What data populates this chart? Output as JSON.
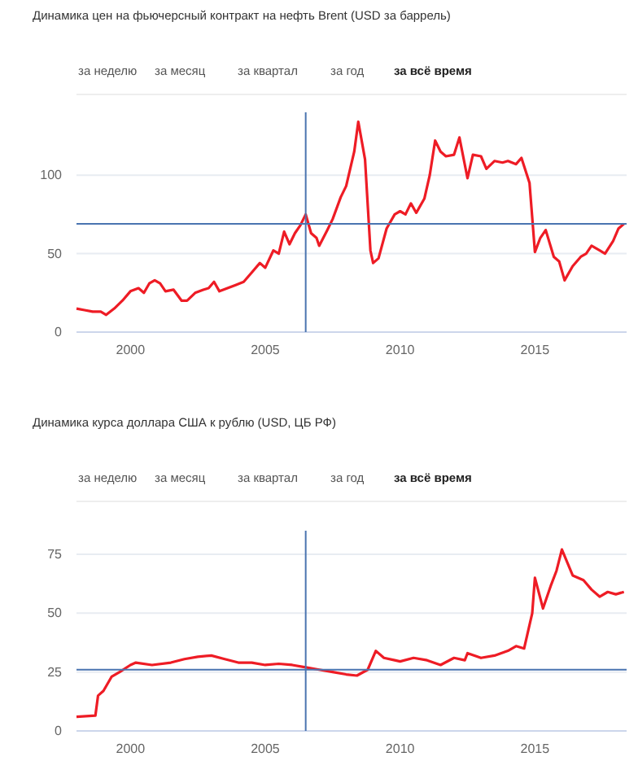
{
  "chart_data": [
    {
      "type": "line",
      "title": "Динамика цен на фьючерсный контракт на нефть Brent (USD за баррель)",
      "annotations": [
        "за неделю",
        "за месяц",
        "за квартал",
        "за год",
        "за всё время"
      ],
      "x": [
        1998.0,
        1998.3,
        1998.6,
        1998.9,
        1999.1,
        1999.4,
        1999.7,
        2000.0,
        2000.3,
        2000.5,
        2000.7,
        2000.9,
        2001.1,
        2001.3,
        2001.6,
        2001.9,
        2002.1,
        2002.4,
        2002.7,
        2002.9,
        2003.1,
        2003.3,
        2003.6,
        2003.9,
        2004.2,
        2004.5,
        2004.8,
        2005.0,
        2005.3,
        2005.5,
        2005.7,
        2005.9,
        2006.1,
        2006.3,
        2006.5,
        2006.7,
        2006.9,
        2007.0,
        2007.3,
        2007.5,
        2007.8,
        2008.0,
        2008.3,
        2008.45,
        2008.7,
        2008.9,
        2009.0,
        2009.2,
        2009.5,
        2009.8,
        2010.0,
        2010.2,
        2010.4,
        2010.6,
        2010.9,
        2011.1,
        2011.3,
        2011.5,
        2011.7,
        2012.0,
        2012.2,
        2012.5,
        2012.7,
        2013.0,
        2013.2,
        2013.5,
        2013.8,
        2014.0,
        2014.3,
        2014.5,
        2014.8,
        2015.0,
        2015.2,
        2015.4,
        2015.7,
        2015.9,
        2016.1,
        2016.4,
        2016.7,
        2016.9,
        2017.1,
        2017.4,
        2017.6,
        2017.9,
        2018.1,
        2018.3
      ],
      "series": [
        {
          "color": "#ee1c25",
          "values": [
            15,
            14,
            13,
            13,
            11,
            15,
            20,
            26,
            28,
            25,
            31,
            33,
            31,
            26,
            27,
            20,
            20,
            25,
            27,
            28,
            32,
            26,
            28,
            30,
            32,
            38,
            44,
            41,
            52,
            50,
            64,
            56,
            63,
            68,
            75,
            63,
            60,
            55,
            65,
            72,
            86,
            93,
            115,
            134,
            110,
            52,
            44,
            47,
            66,
            75,
            77,
            75,
            82,
            76,
            85,
            100,
            122,
            115,
            112,
            113,
            124,
            98,
            113,
            112,
            104,
            109,
            108,
            109,
            107,
            111,
            95,
            51,
            60,
            65,
            48,
            45,
            33,
            42,
            48,
            50,
            55,
            52,
            50,
            58,
            66,
            69
          ]
        }
      ],
      "xlim": [
        1998,
        2018.4
      ],
      "xticks": [
        2000,
        2005,
        2010,
        2015
      ],
      "ylim": [
        0,
        140
      ],
      "yticks": [
        0,
        50,
        100
      ],
      "grid": "y",
      "ref_lines": [
        {
          "axis": "x",
          "value": 2006.5,
          "color": "#4a74b0"
        },
        {
          "axis": "y",
          "value": 69,
          "color": "#4a74b0"
        }
      ]
    },
    {
      "type": "line",
      "title": "Динамика курса доллара США к рублю (USD, ЦБ РФ)",
      "annotations": [
        "за неделю",
        "за месяц",
        "за квартал",
        "за год",
        "за всё время"
      ],
      "x": [
        1998.0,
        1998.7,
        1998.8,
        1999.0,
        1999.3,
        1999.6,
        2000.0,
        2000.2,
        2000.8,
        2001.5,
        2002.0,
        2002.5,
        2003.0,
        2003.5,
        2004.0,
        2004.5,
        2005.0,
        2005.5,
        2006.0,
        2006.5,
        2007.0,
        2007.5,
        2008.0,
        2008.4,
        2008.8,
        2009.1,
        2009.4,
        2009.8,
        2010.0,
        2010.5,
        2011.0,
        2011.5,
        2012.0,
        2012.4,
        2012.5,
        2013.0,
        2013.5,
        2014.0,
        2014.3,
        2014.6,
        2014.9,
        2015.0,
        2015.3,
        2015.6,
        2015.8,
        2016.0,
        2016.4,
        2016.8,
        2017.1,
        2017.4,
        2017.7,
        2018.0,
        2018.3
      ],
      "series": [
        {
          "color": "#ee1c25",
          "values": [
            6,
            6.5,
            15,
            17,
            23,
            25,
            28,
            29,
            28,
            29,
            30.5,
            31.5,
            32,
            30.5,
            29,
            29,
            28,
            28.5,
            28,
            27,
            26,
            25,
            24,
            23.5,
            26,
            34,
            31,
            30,
            29.5,
            31,
            30,
            28,
            31,
            30,
            33,
            31,
            32,
            34,
            36,
            35,
            50,
            65,
            52,
            62,
            68,
            77,
            66,
            64,
            60,
            57,
            59,
            58,
            59
          ]
        }
      ],
      "xlim": [
        1998,
        2018.4
      ],
      "xticks": [
        2000,
        2005,
        2010,
        2015
      ],
      "ylim": [
        0,
        85
      ],
      "yticks": [
        0,
        25,
        50,
        75
      ],
      "grid": "y",
      "ref_lines": [
        {
          "axis": "x",
          "value": 2006.5,
          "color": "#4a74b0"
        },
        {
          "axis": "y",
          "value": 26,
          "color": "#4a74b0"
        }
      ]
    }
  ]
}
